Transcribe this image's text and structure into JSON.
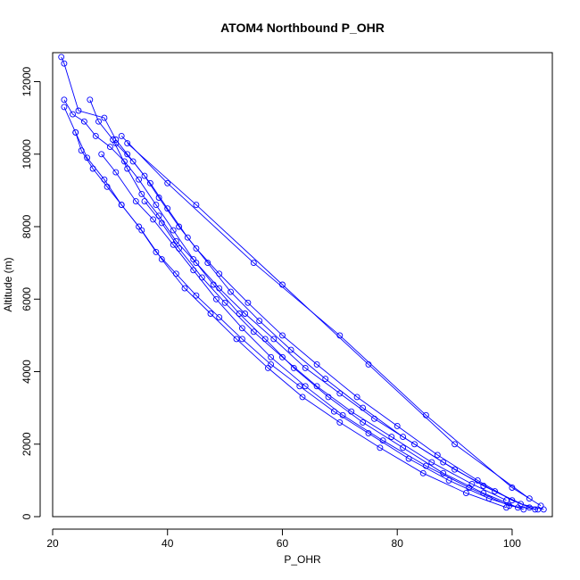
{
  "chart_data": {
    "type": "scatter",
    "title": "ATOM4 Northbound P_OHR",
    "xlabel": "P_OHR",
    "ylabel": "Altitude (m)",
    "xlim": [
      20,
      107
    ],
    "ylim": [
      0,
      12800
    ],
    "x_ticks": [
      20,
      40,
      60,
      80,
      100
    ],
    "y_ticks": [
      0,
      2000,
      4000,
      6000,
      8000,
      10000,
      12000
    ],
    "grid": false,
    "legend": "none",
    "color": "#0000ff",
    "marker": "open-circle",
    "connected": true,
    "series": [
      {
        "values": [
          {
            "x": 21.5,
            "y": 12680
          },
          {
            "x": 22.0,
            "y": 12500
          },
          {
            "x": 24.5,
            "y": 11200
          },
          {
            "x": 29.0,
            "y": 11000
          },
          {
            "x": 31.0,
            "y": 10400
          },
          {
            "x": 33.0,
            "y": 10000
          },
          {
            "x": 36.0,
            "y": 9400
          },
          {
            "x": 38.5,
            "y": 8800
          },
          {
            "x": 42.0,
            "y": 8000
          },
          {
            "x": 45.0,
            "y": 7400
          },
          {
            "x": 49.0,
            "y": 6700
          },
          {
            "x": 54.0,
            "y": 5900
          },
          {
            "x": 60.0,
            "y": 5000
          },
          {
            "x": 66.0,
            "y": 4200
          },
          {
            "x": 73.0,
            "y": 3300
          },
          {
            "x": 80.0,
            "y": 2500
          },
          {
            "x": 87.0,
            "y": 1700
          },
          {
            "x": 94.0,
            "y": 1000
          },
          {
            "x": 100.0,
            "y": 450
          },
          {
            "x": 104.0,
            "y": 200
          }
        ]
      },
      {
        "values": [
          {
            "x": 22.0,
            "y": 11500
          },
          {
            "x": 23.5,
            "y": 11100
          },
          {
            "x": 25.5,
            "y": 10900
          },
          {
            "x": 27.5,
            "y": 10500
          },
          {
            "x": 30.0,
            "y": 10200
          },
          {
            "x": 32.5,
            "y": 9800
          },
          {
            "x": 35.0,
            "y": 9300
          },
          {
            "x": 38.0,
            "y": 8600
          },
          {
            "x": 41.0,
            "y": 7900
          },
          {
            "x": 44.5,
            "y": 7100
          },
          {
            "x": 48.0,
            "y": 6400
          },
          {
            "x": 52.5,
            "y": 5600
          },
          {
            "x": 57.0,
            "y": 4900
          },
          {
            "x": 62.0,
            "y": 4100
          },
          {
            "x": 68.0,
            "y": 3300
          },
          {
            "x": 74.0,
            "y": 2600
          },
          {
            "x": 81.0,
            "y": 1900
          },
          {
            "x": 88.0,
            "y": 1200
          },
          {
            "x": 95.0,
            "y": 650
          },
          {
            "x": 101.0,
            "y": 250
          }
        ]
      },
      {
        "values": [
          {
            "x": 22.0,
            "y": 11300
          },
          {
            "x": 24.0,
            "y": 10600
          },
          {
            "x": 25.0,
            "y": 10100
          },
          {
            "x": 27.0,
            "y": 9600
          },
          {
            "x": 29.5,
            "y": 9100
          },
          {
            "x": 32.0,
            "y": 8600
          },
          {
            "x": 35.0,
            "y": 8000
          },
          {
            "x": 38.0,
            "y": 7300
          },
          {
            "x": 41.5,
            "y": 6700
          },
          {
            "x": 45.0,
            "y": 6100
          },
          {
            "x": 49.0,
            "y": 5500
          },
          {
            "x": 53.0,
            "y": 4900
          },
          {
            "x": 58.0,
            "y": 4200
          },
          {
            "x": 63.0,
            "y": 3600
          },
          {
            "x": 69.0,
            "y": 2900
          },
          {
            "x": 75.0,
            "y": 2300
          },
          {
            "x": 82.0,
            "y": 1600
          },
          {
            "x": 89.0,
            "y": 1000
          },
          {
            "x": 96.0,
            "y": 500
          },
          {
            "x": 102.0,
            "y": 200
          }
        ]
      },
      {
        "values": [
          {
            "x": 26.5,
            "y": 11500
          },
          {
            "x": 28.0,
            "y": 10900
          },
          {
            "x": 30.5,
            "y": 10400
          },
          {
            "x": 33.0,
            "y": 9600
          },
          {
            "x": 35.5,
            "y": 8900
          },
          {
            "x": 38.5,
            "y": 8300
          },
          {
            "x": 41.5,
            "y": 7600
          },
          {
            "x": 45.0,
            "y": 7000
          },
          {
            "x": 49.0,
            "y": 6300
          },
          {
            "x": 53.5,
            "y": 5600
          },
          {
            "x": 58.5,
            "y": 4900
          },
          {
            "x": 64.0,
            "y": 4100
          },
          {
            "x": 70.0,
            "y": 3400
          },
          {
            "x": 76.0,
            "y": 2700
          },
          {
            "x": 83.0,
            "y": 2000
          },
          {
            "x": 90.0,
            "y": 1300
          },
          {
            "x": 97.0,
            "y": 700
          },
          {
            "x": 103.0,
            "y": 250
          }
        ]
      },
      {
        "values": [
          {
            "x": 31.0,
            "y": 10300
          },
          {
            "x": 34.0,
            "y": 9800
          },
          {
            "x": 37.0,
            "y": 9200
          },
          {
            "x": 40.0,
            "y": 8500
          },
          {
            "x": 43.5,
            "y": 7700
          },
          {
            "x": 47.0,
            "y": 7000
          },
          {
            "x": 51.0,
            "y": 6200
          },
          {
            "x": 56.0,
            "y": 5400
          },
          {
            "x": 61.5,
            "y": 4600
          },
          {
            "x": 67.5,
            "y": 3800
          },
          {
            "x": 74.0,
            "y": 3000
          },
          {
            "x": 81.0,
            "y": 2200
          },
          {
            "x": 88.0,
            "y": 1500
          },
          {
            "x": 95.0,
            "y": 850
          },
          {
            "x": 101.5,
            "y": 350
          },
          {
            "x": 105.5,
            "y": 200
          }
        ]
      },
      {
        "values": [
          {
            "x": 28.5,
            "y": 10000
          },
          {
            "x": 31.0,
            "y": 9500
          },
          {
            "x": 34.5,
            "y": 8700
          },
          {
            "x": 37.5,
            "y": 8200
          },
          {
            "x": 41.0,
            "y": 7500
          },
          {
            "x": 44.5,
            "y": 6800
          },
          {
            "x": 48.5,
            "y": 6000
          },
          {
            "x": 53.0,
            "y": 5200
          },
          {
            "x": 58.0,
            "y": 4400
          },
          {
            "x": 64.0,
            "y": 3600
          },
          {
            "x": 70.5,
            "y": 2800
          },
          {
            "x": 77.5,
            "y": 2100
          },
          {
            "x": 85.0,
            "y": 1400
          },
          {
            "x": 92.5,
            "y": 800
          },
          {
            "x": 99.5,
            "y": 300
          },
          {
            "x": 104.5,
            "y": 200
          }
        ]
      },
      {
        "values": [
          {
            "x": 32.0,
            "y": 10500
          },
          {
            "x": 40.0,
            "y": 9200
          },
          {
            "x": 55.0,
            "y": 7000
          },
          {
            "x": 70.0,
            "y": 5000
          },
          {
            "x": 85.0,
            "y": 2800
          },
          {
            "x": 100.0,
            "y": 800
          },
          {
            "x": 105.0,
            "y": 300
          }
        ]
      },
      {
        "values": [
          {
            "x": 33.0,
            "y": 10300
          },
          {
            "x": 45.0,
            "y": 8600
          },
          {
            "x": 60.0,
            "y": 6400
          },
          {
            "x": 75.0,
            "y": 4200
          },
          {
            "x": 90.0,
            "y": 2000
          },
          {
            "x": 103.0,
            "y": 500
          }
        ]
      },
      {
        "values": [
          {
            "x": 36.0,
            "y": 8700
          },
          {
            "x": 39.0,
            "y": 8100
          },
          {
            "x": 42.0,
            "y": 7400
          },
          {
            "x": 46.0,
            "y": 6600
          },
          {
            "x": 50.0,
            "y": 5900
          },
          {
            "x": 55.0,
            "y": 5100
          },
          {
            "x": 60.0,
            "y": 4400
          },
          {
            "x": 66.0,
            "y": 3600
          },
          {
            "x": 72.0,
            "y": 2900
          },
          {
            "x": 79.0,
            "y": 2200
          },
          {
            "x": 86.0,
            "y": 1500
          },
          {
            "x": 93.0,
            "y": 900
          },
          {
            "x": 99.0,
            "y": 450
          }
        ]
      },
      {
        "values": [
          {
            "x": 24.0,
            "y": 10600
          },
          {
            "x": 26.0,
            "y": 9900
          },
          {
            "x": 29.0,
            "y": 9300
          },
          {
            "x": 32.0,
            "y": 8600
          },
          {
            "x": 35.5,
            "y": 7900
          },
          {
            "x": 39.0,
            "y": 7100
          },
          {
            "x": 43.0,
            "y": 6300
          },
          {
            "x": 47.5,
            "y": 5600
          },
          {
            "x": 52.0,
            "y": 4900
          },
          {
            "x": 57.5,
            "y": 4100
          },
          {
            "x": 63.5,
            "y": 3300
          },
          {
            "x": 70.0,
            "y": 2600
          },
          {
            "x": 77.0,
            "y": 1900
          },
          {
            "x": 84.5,
            "y": 1200
          },
          {
            "x": 92.0,
            "y": 650
          },
          {
            "x": 99.0,
            "y": 250
          }
        ]
      }
    ]
  }
}
